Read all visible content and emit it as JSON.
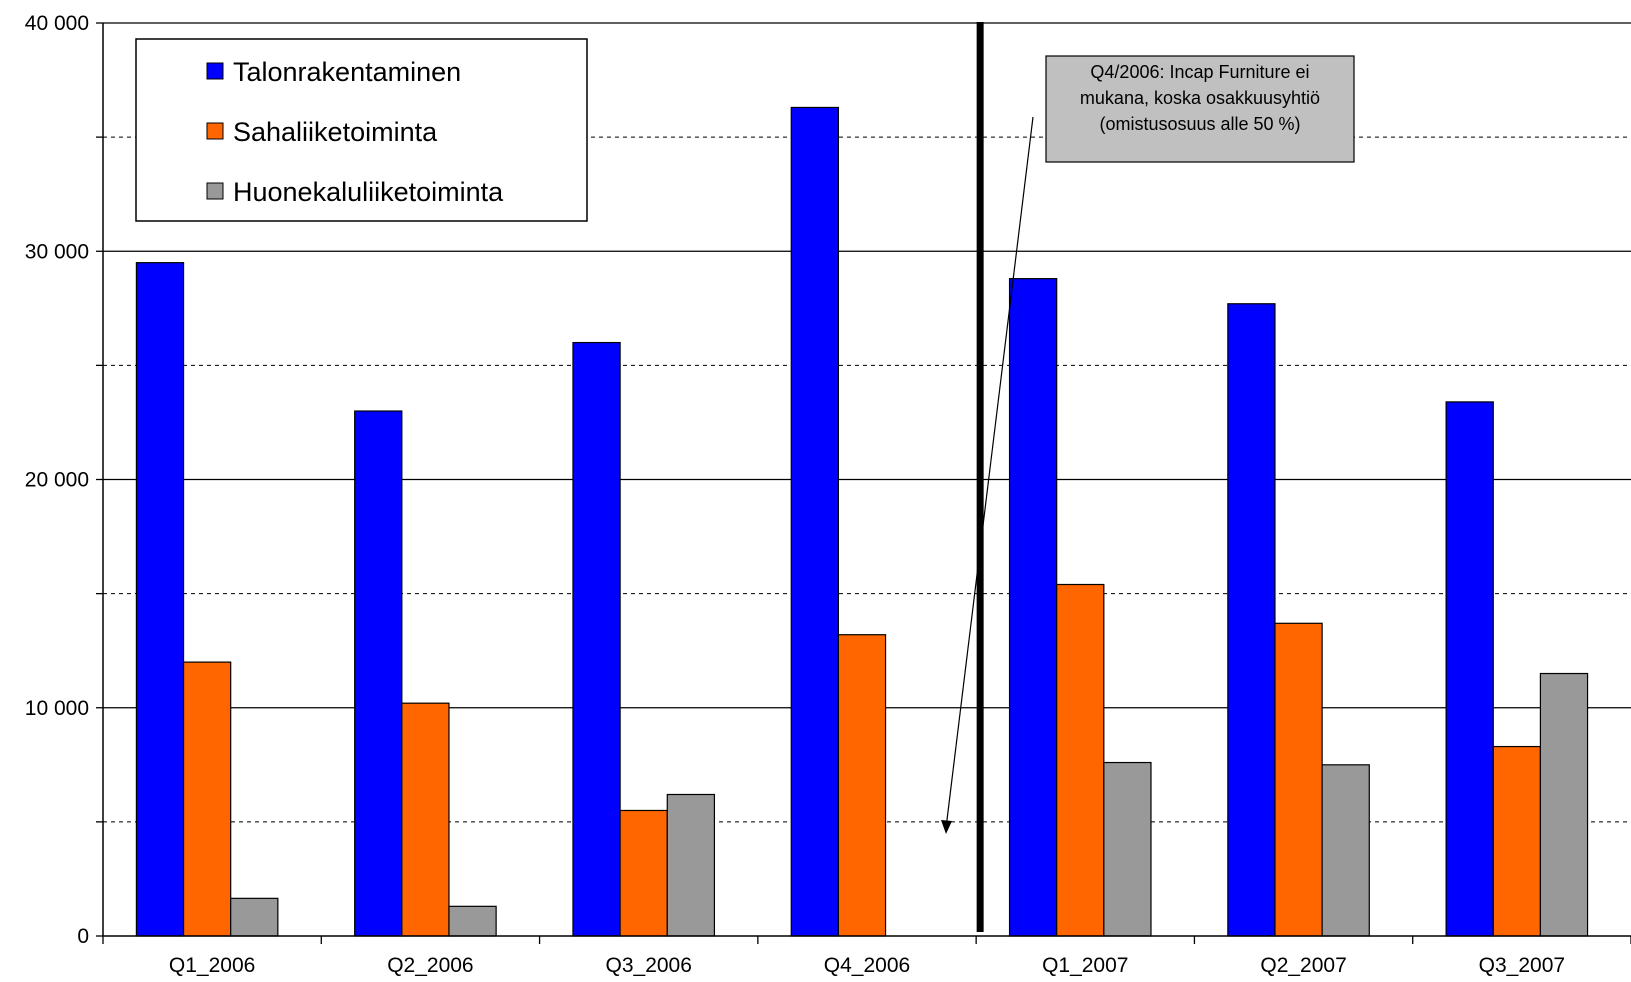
{
  "chart_data": {
    "type": "bar",
    "categories": [
      "Q1_2006",
      "Q2_2006",
      "Q3_2006",
      "Q4_2006",
      "Q1_2007",
      "Q2_2007",
      "Q3_2007"
    ],
    "series": [
      {
        "name": "Talonrakentaminen",
        "color": "#0000ff",
        "values": [
          29500,
          23000,
          26000,
          36300,
          28800,
          27700,
          23400
        ]
      },
      {
        "name": "Sahaliiketoiminta",
        "color": "#ff6600",
        "values": [
          12000,
          10200,
          5500,
          13200,
          15400,
          13700,
          8300
        ]
      },
      {
        "name": "Huonekaluliiketoiminta",
        "color": "#999999",
        "values": [
          1650,
          1300,
          6200,
          null,
          7600,
          7500,
          11500
        ]
      }
    ],
    "y_ticks": [
      "0",
      "10 000",
      "20 000",
      "30 000",
      "40 000"
    ],
    "ylim": [
      0,
      40000
    ],
    "major_grid_step": 10000,
    "minor_grid_step": 5000,
    "grid": true,
    "legend_position": "top-left",
    "annotation": {
      "lines": [
        "Q4/2006: Incap Furniture ei",
        "mukana, koska osakkuusyhtiö",
        "(omistusosuus alle 50 %)"
      ],
      "points_to": {
        "x": "Q4_2006",
        "y": 4500
      }
    },
    "divider_after": "Q4_2006"
  }
}
